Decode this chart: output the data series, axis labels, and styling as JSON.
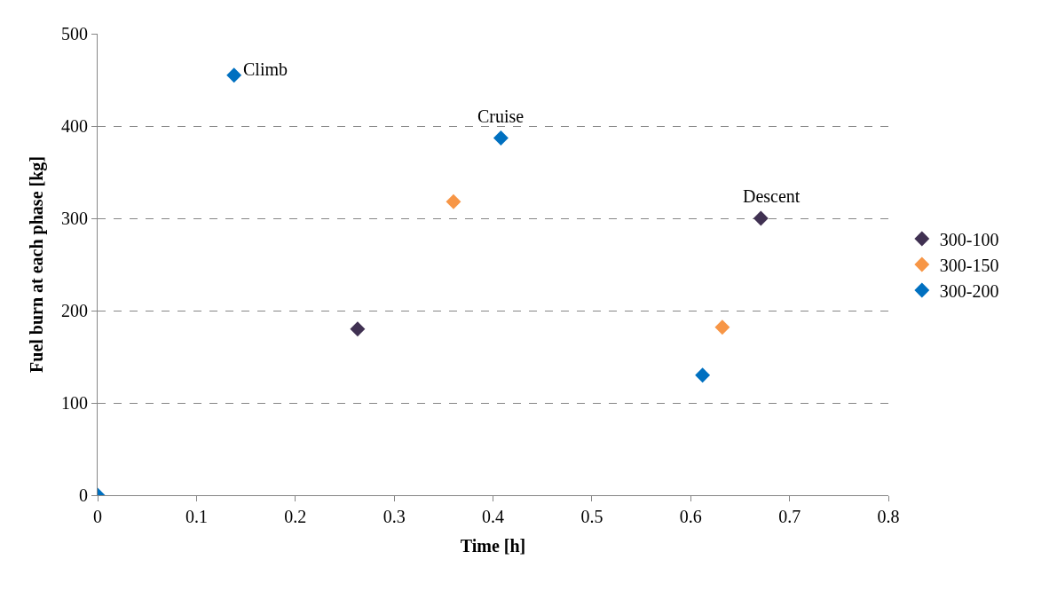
{
  "chart_data": {
    "type": "scatter",
    "xlabel": "Time [h]",
    "ylabel": "Fuel burn at each phase [kg]",
    "series": [
      {
        "name": "300-100",
        "color": "#403152",
        "x": [
          0.263,
          0.671
        ],
        "values": [
          180,
          300
        ]
      },
      {
        "name": "300-150",
        "color": "#f79646",
        "x": [
          0.36,
          0.632
        ],
        "values": [
          318,
          182
        ]
      },
      {
        "name": "300-200",
        "color": "#0070c0",
        "x": [
          0,
          0.138,
          0.408,
          0.612
        ],
        "values": [
          0,
          455,
          387,
          130
        ]
      }
    ],
    "annotations": [
      {
        "text": "Climb",
        "x": 0.138,
        "y": 455
      },
      {
        "text": "Cruise",
        "x": 0.408,
        "y": 387
      },
      {
        "text": "Descent",
        "x": 0.671,
        "y": 300
      }
    ],
    "xlim": [
      0,
      0.8
    ],
    "xticks": [
      0,
      0.1,
      0.2,
      0.3,
      0.4,
      0.5,
      0.6,
      0.7,
      0.8
    ],
    "ylim": [
      0,
      500
    ],
    "yticks": [
      0,
      100,
      200,
      300,
      400,
      500
    ],
    "grid": "y",
    "legend": "right",
    "marker": "diamond"
  }
}
